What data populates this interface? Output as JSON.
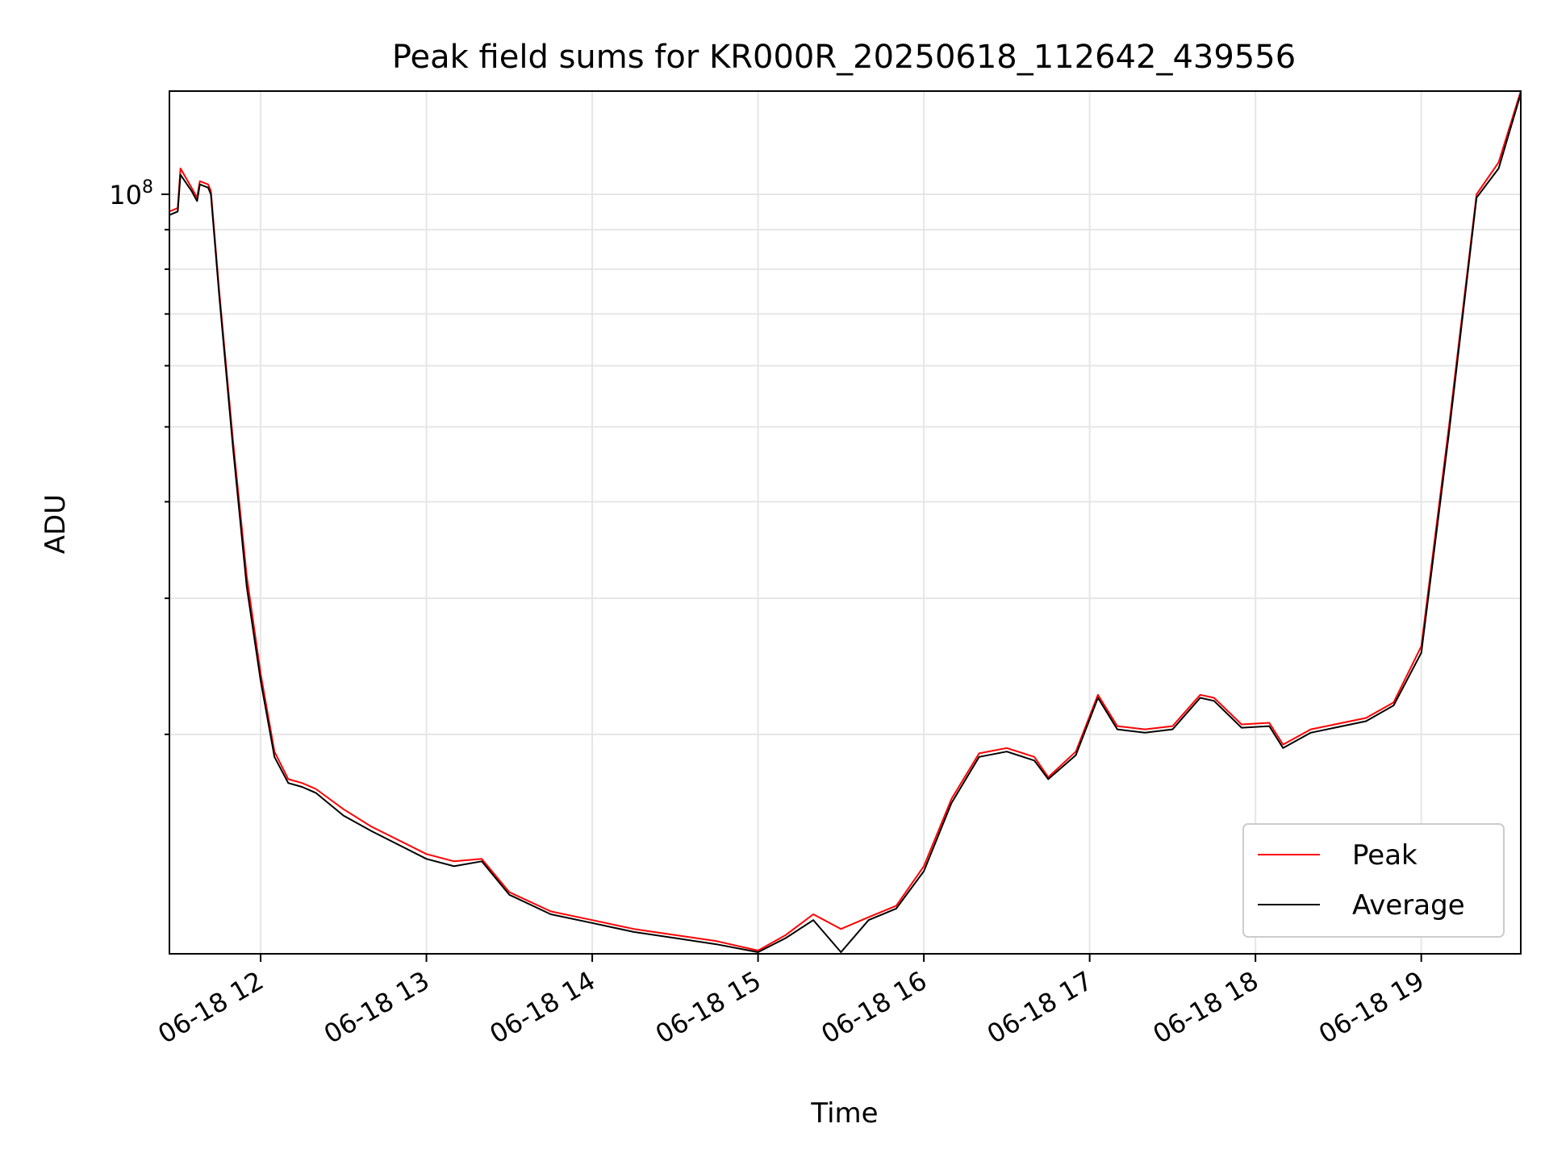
{
  "chart_data": {
    "type": "line",
    "title": "Peak field sums for KR000R_20250618_112642_439556",
    "xlabel": "Time",
    "ylabel": "ADU",
    "x_axis": "datetime",
    "x_tick_labels": [
      "06-18 12",
      "06-18 13",
      "06-18 14",
      "06-18 15",
      "06-18 16",
      "06-18 17",
      "06-18 18",
      "06-18 19"
    ],
    "xlim": [
      "2025-06-18 11:27",
      "2025-06-18 19:36"
    ],
    "y_scale": "log",
    "y_tick_labels": [
      {
        "base": "10",
        "exp": "8"
      }
    ],
    "ylim": [
      10400000,
      136000000
    ],
    "grid": true,
    "legend_position": "lower-right",
    "series": [
      {
        "name": "Peak",
        "color": "#ff0000",
        "x": [
          "2025-06-18 11:27",
          "2025-06-18 11:30",
          "2025-06-18 11:31",
          "2025-06-18 11:35",
          "2025-06-18 11:37",
          "2025-06-18 11:38",
          "2025-06-18 11:41",
          "2025-06-18 11:42",
          "2025-06-18 11:45",
          "2025-06-18 11:50",
          "2025-06-18 11:55",
          "2025-06-18 12:00",
          "2025-06-18 12:05",
          "2025-06-18 12:10",
          "2025-06-18 12:15",
          "2025-06-18 12:20",
          "2025-06-18 12:30",
          "2025-06-18 12:40",
          "2025-06-18 13:00",
          "2025-06-18 13:10",
          "2025-06-18 13:20",
          "2025-06-18 13:30",
          "2025-06-18 13:45",
          "2025-06-18 14:00",
          "2025-06-18 14:15",
          "2025-06-18 14:30",
          "2025-06-18 14:45",
          "2025-06-18 15:00",
          "2025-06-18 15:10",
          "2025-06-18 15:20",
          "2025-06-18 15:30",
          "2025-06-18 15:40",
          "2025-06-18 15:50",
          "2025-06-18 16:00",
          "2025-06-18 16:10",
          "2025-06-18 16:20",
          "2025-06-18 16:30",
          "2025-06-18 16:40",
          "2025-06-18 16:45",
          "2025-06-18 16:55",
          "2025-06-18 17:03",
          "2025-06-18 17:10",
          "2025-06-18 17:20",
          "2025-06-18 17:30",
          "2025-06-18 17:40",
          "2025-06-18 17:45",
          "2025-06-18 17:55",
          "2025-06-18 18:05",
          "2025-06-18 18:10",
          "2025-06-18 18:20",
          "2025-06-18 18:40",
          "2025-06-18 18:50",
          "2025-06-18 19:00",
          "2025-06-18 19:10",
          "2025-06-18 19:20",
          "2025-06-18 19:28",
          "2025-06-18 19:36"
        ],
        "y": [
          95000000,
          96000000,
          108000000,
          102000000,
          99000000,
          104000000,
          103000000,
          101000000,
          75000000,
          48000000,
          32000000,
          24000000,
          19000000,
          17500000,
          17300000,
          17000000,
          16000000,
          15200000,
          14000000,
          13700000,
          13800000,
          12500000,
          11800000,
          11500000,
          11200000,
          11000000,
          10800000,
          10500000,
          11000000,
          11700000,
          11200000,
          11600000,
          12000000,
          13500000,
          16500000,
          18900000,
          19200000,
          18700000,
          17600000,
          19000000,
          22500000,
          20500000,
          20300000,
          20500000,
          22500000,
          22300000,
          20600000,
          20700000,
          19400000,
          20300000,
          21000000,
          22000000,
          26000000,
          50000000,
          100000000,
          110000000,
          136000000
        ]
      },
      {
        "name": "Average",
        "color": "#000000",
        "x": [
          "2025-06-18 11:27",
          "2025-06-18 11:30",
          "2025-06-18 11:31",
          "2025-06-18 11:35",
          "2025-06-18 11:37",
          "2025-06-18 11:38",
          "2025-06-18 11:41",
          "2025-06-18 11:42",
          "2025-06-18 11:45",
          "2025-06-18 11:50",
          "2025-06-18 11:55",
          "2025-06-18 12:00",
          "2025-06-18 12:05",
          "2025-06-18 12:10",
          "2025-06-18 12:15",
          "2025-06-18 12:20",
          "2025-06-18 12:30",
          "2025-06-18 12:40",
          "2025-06-18 13:00",
          "2025-06-18 13:10",
          "2025-06-18 13:20",
          "2025-06-18 13:30",
          "2025-06-18 13:45",
          "2025-06-18 14:00",
          "2025-06-18 14:15",
          "2025-06-18 14:30",
          "2025-06-18 14:45",
          "2025-06-18 15:00",
          "2025-06-18 15:10",
          "2025-06-18 15:20",
          "2025-06-18 15:30",
          "2025-06-18 15:40",
          "2025-06-18 15:50",
          "2025-06-18 16:00",
          "2025-06-18 16:10",
          "2025-06-18 16:20",
          "2025-06-18 16:30",
          "2025-06-18 16:40",
          "2025-06-18 16:45",
          "2025-06-18 16:55",
          "2025-06-18 17:03",
          "2025-06-18 17:10",
          "2025-06-18 17:20",
          "2025-06-18 17:30",
          "2025-06-18 17:40",
          "2025-06-18 17:45",
          "2025-06-18 17:55",
          "2025-06-18 18:05",
          "2025-06-18 18:10",
          "2025-06-18 18:20",
          "2025-06-18 18:40",
          "2025-06-18 18:50",
          "2025-06-18 19:00",
          "2025-06-18 19:10",
          "2025-06-18 19:20",
          "2025-06-18 19:28",
          "2025-06-18 19:36"
        ],
        "y": [
          94000000,
          95000000,
          106000000,
          101000000,
          98000000,
          103000000,
          102000000,
          100000000,
          74000000,
          47000000,
          31000000,
          23500000,
          18700000,
          17300000,
          17100000,
          16800000,
          15700000,
          15000000,
          13800000,
          13500000,
          13700000,
          12400000,
          11700000,
          11400000,
          11100000,
          10900000,
          10700000,
          10450000,
          10900000,
          11500000,
          10450000,
          11500000,
          11900000,
          13300000,
          16300000,
          18700000,
          19000000,
          18500000,
          17500000,
          18800000,
          22300000,
          20300000,
          20100000,
          20300000,
          22300000,
          22100000,
          20400000,
          20500000,
          19200000,
          20100000,
          20800000,
          21800000,
          25500000,
          49000000,
          99000000,
          108000000,
          135000000
        ]
      }
    ]
  }
}
